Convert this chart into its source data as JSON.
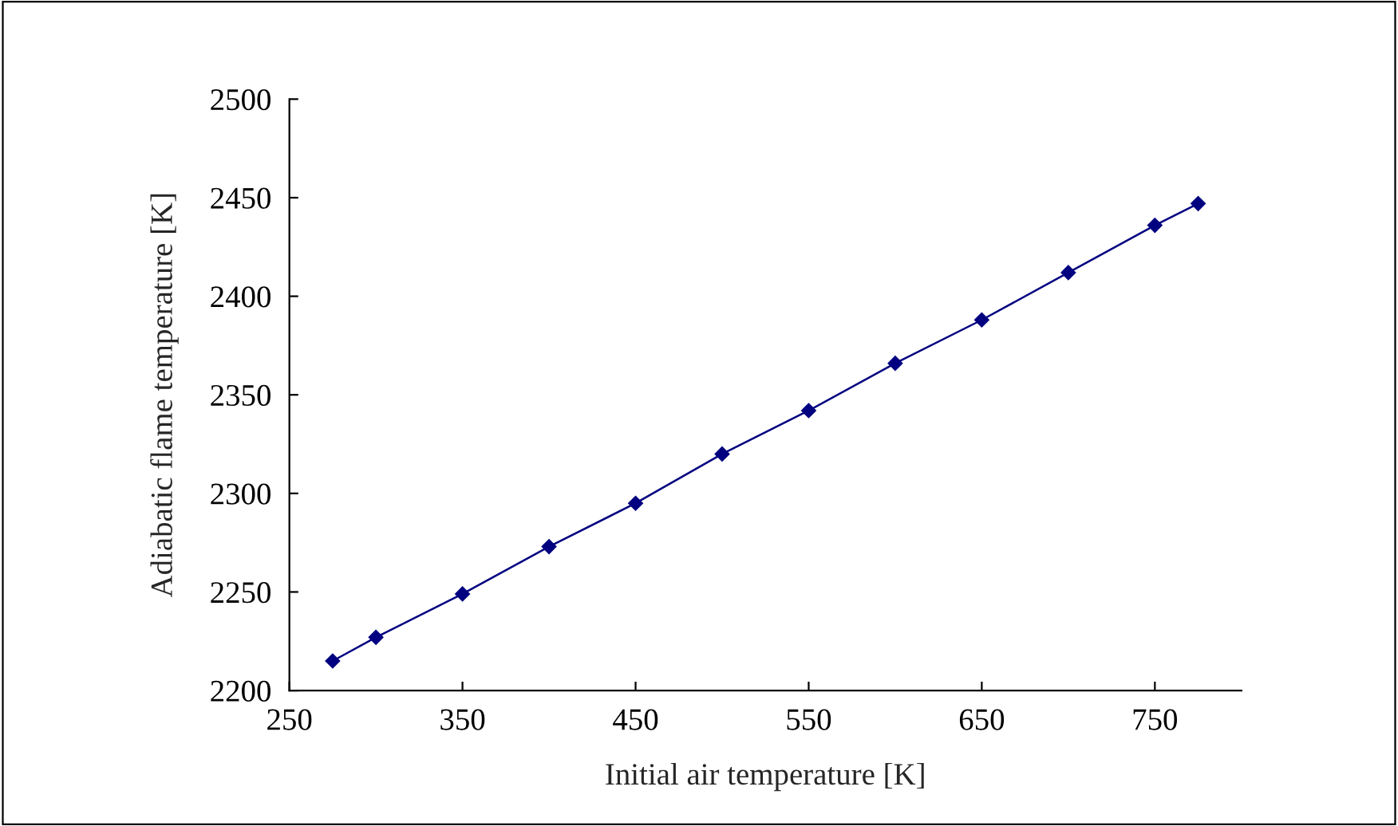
{
  "chart_data": {
    "type": "line",
    "xlabel": "Initial air temperature [K]",
    "ylabel": "Adiabatic flame temperature [K]",
    "x": [
      275,
      300,
      350,
      400,
      450,
      500,
      550,
      600,
      650,
      700,
      750,
      775
    ],
    "series": [
      {
        "color": "#000080",
        "values": [
          2215,
          2227,
          2249,
          2273,
          2295,
          2320,
          2342,
          2366,
          2388,
          2412,
          2436,
          2447
        ]
      }
    ],
    "xlim": [
      250,
      800
    ],
    "xticks": [
      250,
      350,
      450,
      550,
      650,
      750
    ],
    "ylim": [
      2200,
      2500
    ],
    "yticks": [
      2200,
      2250,
      2300,
      2350,
      2400,
      2450,
      2500
    ],
    "marker": "diamond",
    "line_style": "solid",
    "grid": false,
    "legend": false
  }
}
